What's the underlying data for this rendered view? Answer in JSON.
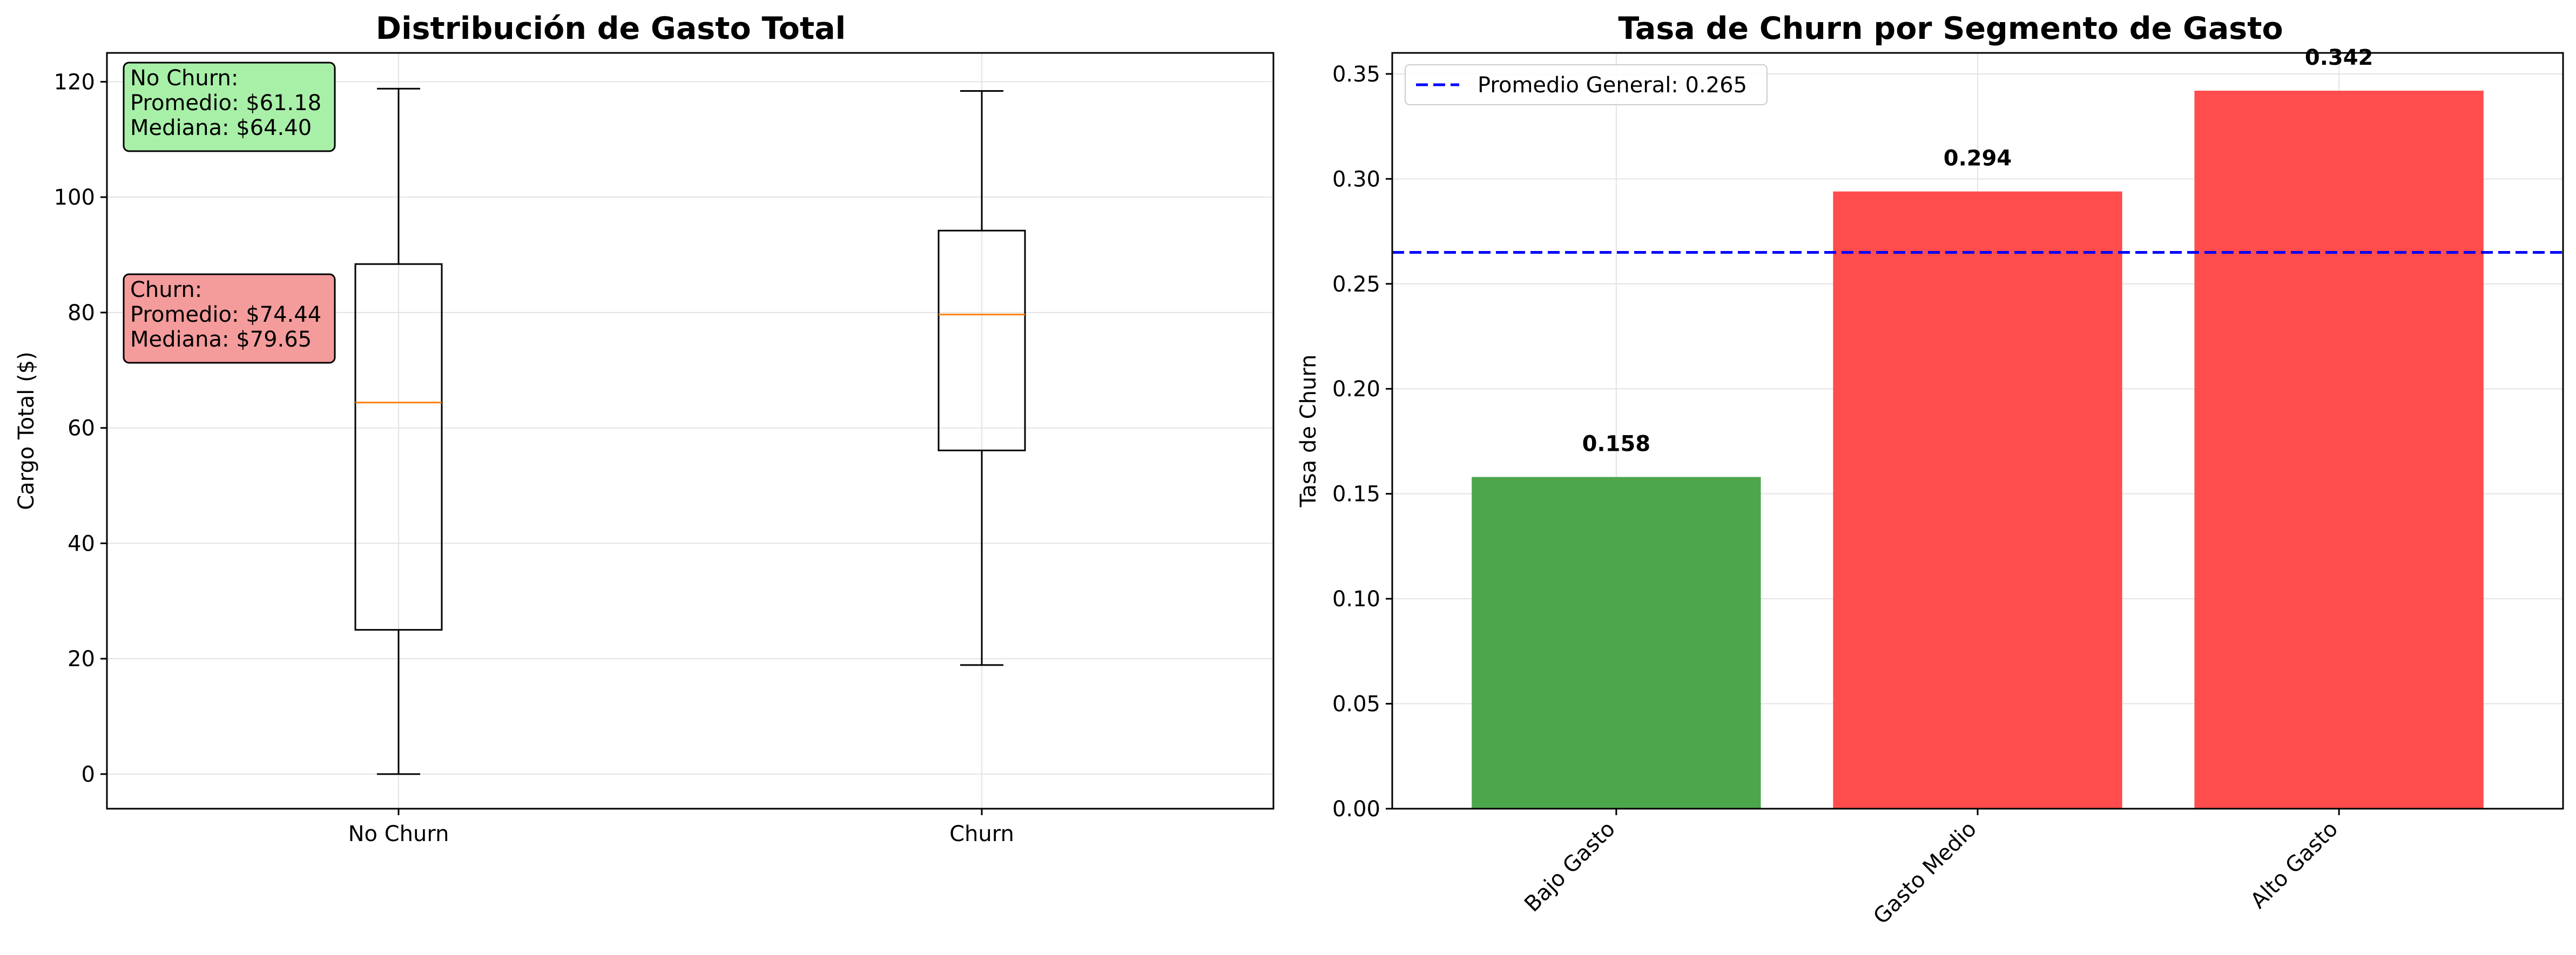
{
  "chart_data": [
    {
      "type": "box",
      "title": "Distribución de Gasto Total",
      "xlabel": "",
      "ylabel": "Cargo Total ($)",
      "ylim": [
        -6,
        125
      ],
      "yticks": [
        0,
        20,
        40,
        60,
        80,
        100,
        120
      ],
      "grid": true,
      "categories": [
        "No Churn",
        "Churn"
      ],
      "boxes": [
        {
          "category": "No Churn",
          "whisker_low": 0,
          "q1": 25.0,
          "median": 64.4,
          "q3": 88.4,
          "whisker_high": 118.8
        },
        {
          "category": "Churn",
          "whisker_low": 18.9,
          "q1": 56.1,
          "median": 79.65,
          "q3": 94.2,
          "whisker_high": 118.4
        }
      ],
      "annotations": [
        {
          "lines": [
            "No Churn:",
            "Promedio: $61.18",
            "Mediana: $64.40"
          ],
          "color": "#a8f0a8"
        },
        {
          "lines": [
            "Churn:",
            "Promedio: $74.44",
            "Mediana: $79.65"
          ],
          "color": "#f49b9b"
        }
      ]
    },
    {
      "type": "bar",
      "title": "Tasa de Churn por Segmento de Gasto",
      "xlabel": "",
      "ylabel": "Tasa de Churn",
      "ylim": [
        0,
        0.36
      ],
      "yticks": [
        "0.00",
        "0.05",
        "0.10",
        "0.15",
        "0.20",
        "0.25",
        "0.30",
        "0.35"
      ],
      "grid": true,
      "categories": [
        "Bajo Gasto",
        "Gasto Medio",
        "Alto Gasto"
      ],
      "values": [
        0.158,
        0.294,
        0.342
      ],
      "value_labels": [
        "0.158",
        "0.294",
        "0.342"
      ],
      "bar_colors": [
        "#4ca64c",
        "#ff4c4c",
        "#ff4c4c"
      ],
      "reference_line": {
        "value": 0.265,
        "label": "Promedio General: 0.265",
        "color": "#0000ff",
        "style": "dashed"
      },
      "legend_position": "top-left"
    }
  ]
}
